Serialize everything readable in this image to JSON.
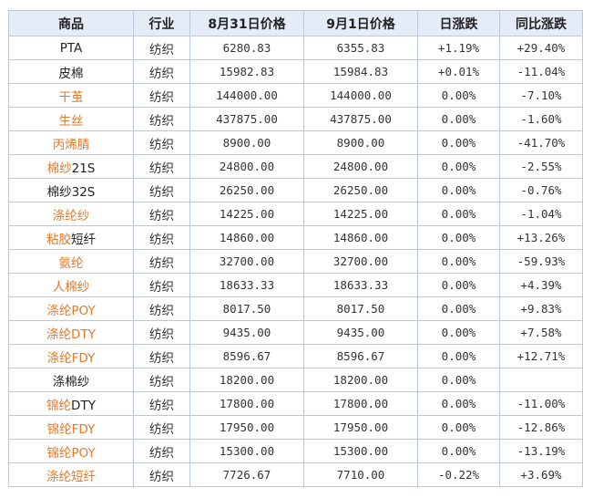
{
  "header": {
    "product": "商品",
    "industry": "行业",
    "price_aug31": "8月31日价格",
    "price_sep1": "9月1日价格",
    "daily_change": "日涨跌",
    "yoy_change": "同比涨跌"
  },
  "colors": {
    "link": "#e07a2c",
    "up": "#e0211b",
    "down": "#2f9a2f",
    "header_bg": "#e4ecf8",
    "border": "#b9c9e4"
  },
  "rows": [
    {
      "name_parts": [
        {
          "text": "PTA",
          "style": "plain"
        }
      ],
      "industry": "纺织",
      "price_aug31": "6280.83",
      "price_sep1": "6355.83",
      "daily": "+1.19%",
      "daily_style": "red",
      "yoy": "+29.40%",
      "yoy_style": "red"
    },
    {
      "name_parts": [
        {
          "text": "皮棉",
          "style": "plain"
        }
      ],
      "industry": "纺织",
      "price_aug31": "15982.83",
      "price_sep1": "15984.83",
      "daily": "+0.01%",
      "daily_style": "red",
      "yoy": "-11.04%",
      "yoy_style": "green"
    },
    {
      "name_parts": [
        {
          "text": "干茧",
          "style": "link"
        }
      ],
      "industry": "纺织",
      "price_aug31": "144000.00",
      "price_sep1": "144000.00",
      "daily": "0.00%",
      "daily_style": "black",
      "yoy": "-7.10%",
      "yoy_style": "green"
    },
    {
      "name_parts": [
        {
          "text": "生丝",
          "style": "link"
        }
      ],
      "industry": "纺织",
      "price_aug31": "437875.00",
      "price_sep1": "437875.00",
      "daily": "0.00%",
      "daily_style": "black",
      "yoy": "-1.60%",
      "yoy_style": "green"
    },
    {
      "name_parts": [
        {
          "text": "丙烯腈",
          "style": "link"
        }
      ],
      "industry": "纺织",
      "price_aug31": "8900.00",
      "price_sep1": "8900.00",
      "daily": "0.00%",
      "daily_style": "black",
      "yoy": "-41.70%",
      "yoy_style": "green"
    },
    {
      "name_parts": [
        {
          "text": "棉纱",
          "style": "link"
        },
        {
          "text": "21S",
          "style": "plain"
        }
      ],
      "industry": "纺织",
      "price_aug31": "24800.00",
      "price_sep1": "24800.00",
      "daily": "0.00%",
      "daily_style": "black",
      "yoy": "-2.55%",
      "yoy_style": "green"
    },
    {
      "name_parts": [
        {
          "text": "棉纱32S",
          "style": "plain"
        }
      ],
      "industry": "纺织",
      "price_aug31": "26250.00",
      "price_sep1": "26250.00",
      "daily": "0.00%",
      "daily_style": "black",
      "yoy": "-0.76%",
      "yoy_style": "green"
    },
    {
      "name_parts": [
        {
          "text": "涤纶纱",
          "style": "link"
        }
      ],
      "industry": "纺织",
      "price_aug31": "14225.00",
      "price_sep1": "14225.00",
      "daily": "0.00%",
      "daily_style": "black",
      "yoy": "-1.04%",
      "yoy_style": "green"
    },
    {
      "name_parts": [
        {
          "text": "粘胶",
          "style": "link"
        },
        {
          "text": "短纤",
          "style": "plain"
        }
      ],
      "industry": "纺织",
      "price_aug31": "14860.00",
      "price_sep1": "14860.00",
      "daily": "0.00%",
      "daily_style": "black",
      "yoy": "+13.26%",
      "yoy_style": "red"
    },
    {
      "name_parts": [
        {
          "text": "氨纶",
          "style": "link"
        }
      ],
      "industry": "纺织",
      "price_aug31": "32700.00",
      "price_sep1": "32700.00",
      "daily": "0.00%",
      "daily_style": "black",
      "yoy": "-59.93%",
      "yoy_style": "green"
    },
    {
      "name_parts": [
        {
          "text": "人棉纱",
          "style": "link"
        }
      ],
      "industry": "纺织",
      "price_aug31": "18633.33",
      "price_sep1": "18633.33",
      "daily": "0.00%",
      "daily_style": "black",
      "yoy": "+4.39%",
      "yoy_style": "red"
    },
    {
      "name_parts": [
        {
          "text": "涤纶POY",
          "style": "link"
        }
      ],
      "industry": "纺织",
      "price_aug31": "8017.50",
      "price_sep1": "8017.50",
      "daily": "0.00%",
      "daily_style": "black",
      "yoy": "+9.83%",
      "yoy_style": "red"
    },
    {
      "name_parts": [
        {
          "text": "涤纶DTY",
          "style": "link"
        }
      ],
      "industry": "纺织",
      "price_aug31": "9435.00",
      "price_sep1": "9435.00",
      "daily": "0.00%",
      "daily_style": "black",
      "yoy": "+7.58%",
      "yoy_style": "red"
    },
    {
      "name_parts": [
        {
          "text": "涤纶FDY",
          "style": "link"
        }
      ],
      "industry": "纺织",
      "price_aug31": "8596.67",
      "price_sep1": "8596.67",
      "daily": "0.00%",
      "daily_style": "black",
      "yoy": "+12.71%",
      "yoy_style": "red"
    },
    {
      "name_parts": [
        {
          "text": "涤棉纱",
          "style": "plain"
        }
      ],
      "industry": "纺织",
      "price_aug31": "18200.00",
      "price_sep1": "18200.00",
      "daily": "0.00%",
      "daily_style": "black",
      "yoy": "",
      "yoy_style": "black"
    },
    {
      "name_parts": [
        {
          "text": "锦纶",
          "style": "link"
        },
        {
          "text": "DTY",
          "style": "plain"
        }
      ],
      "industry": "纺织",
      "price_aug31": "17800.00",
      "price_sep1": "17800.00",
      "daily": "0.00%",
      "daily_style": "black",
      "yoy": "-11.00%",
      "yoy_style": "green"
    },
    {
      "name_parts": [
        {
          "text": "锦纶FDY",
          "style": "link"
        }
      ],
      "industry": "纺织",
      "price_aug31": "17950.00",
      "price_sep1": "17950.00",
      "daily": "0.00%",
      "daily_style": "black",
      "yoy": "-12.86%",
      "yoy_style": "green"
    },
    {
      "name_parts": [
        {
          "text": "锦纶POY",
          "style": "link"
        }
      ],
      "industry": "纺织",
      "price_aug31": "15300.00",
      "price_sep1": "15300.00",
      "daily": "0.00%",
      "daily_style": "black",
      "yoy": "-13.19%",
      "yoy_style": "green"
    },
    {
      "name_parts": [
        {
          "text": "涤纶短纤",
          "style": "link"
        }
      ],
      "industry": "纺织",
      "price_aug31": "7726.67",
      "price_sep1": "7710.00",
      "daily": "-0.22%",
      "daily_style": "green",
      "yoy": "+3.69%",
      "yoy_style": "red"
    }
  ]
}
